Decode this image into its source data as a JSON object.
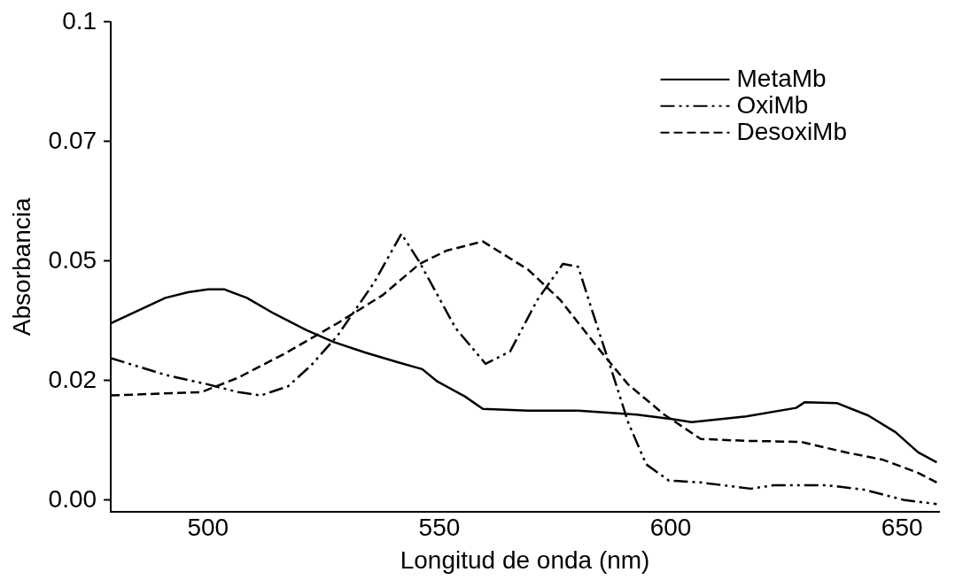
{
  "chart_data": {
    "type": "line",
    "xlabel": "Longitud de onda (nm)",
    "ylabel": "Absorbancia",
    "xlim": [
      479,
      658
    ],
    "xticks": [
      500,
      550,
      600,
      650
    ],
    "ylim": [
      -0.0024,
      0.1
    ],
    "yticks": [
      {
        "value": 0,
        "label": "0.00"
      },
      {
        "value": 0.025,
        "label": "0.02"
      },
      {
        "value": 0.05,
        "label": "0.05"
      },
      {
        "value": 0.075,
        "label": "0.07"
      },
      {
        "value": 0.1,
        "label": "0.1"
      }
    ],
    "grid": false,
    "legend": "top right",
    "marker": "none",
    "series": [
      {
        "name": "MetaMb",
        "color": "#000000",
        "line_style": "solid",
        "x": [
          479,
          490.8,
          495.7,
          500,
          503.5,
          508.4,
          514.3,
          521.2,
          527.1,
          533.9,
          540.8,
          546.3,
          549.6,
          555.5,
          559.4,
          569.2,
          580,
          592.7,
          600.6,
          604.5,
          616.3,
          627.1,
          629,
          635.9,
          642.7,
          648.6,
          653.5,
          657.5
        ],
        "values": [
          0.037,
          0.0423,
          0.0435,
          0.0441,
          0.0441,
          0.0423,
          0.039,
          0.0356,
          0.0331,
          0.0309,
          0.0289,
          0.0274,
          0.0248,
          0.0217,
          0.0191,
          0.0187,
          0.0187,
          0.0179,
          0.0169,
          0.0163,
          0.0175,
          0.0193,
          0.0205,
          0.0203,
          0.0177,
          0.0142,
          0.01,
          0.0079
        ]
      },
      {
        "name": "OxiMb",
        "color": "#000000",
        "line_style": "dashdot",
        "x": [
          479,
          490.8,
          500,
          506.5,
          511.4,
          517.3,
          522.2,
          528,
          535.9,
          541.8,
          545.7,
          553.5,
          560,
          565.3,
          571.2,
          576.7,
          580,
          582.9,
          586.9,
          590.8,
          594.7,
          599.6,
          606.5,
          617.3,
          622.2,
          633.9,
          641.8,
          650.6,
          657.5
        ],
        "values": [
          0.0297,
          0.0262,
          0.0242,
          0.0226,
          0.0219,
          0.0238,
          0.0281,
          0.0344,
          0.0455,
          0.0557,
          0.0498,
          0.036,
          0.0285,
          0.0311,
          0.0419,
          0.0494,
          0.0488,
          0.04,
          0.0281,
          0.0163,
          0.0075,
          0.0041,
          0.0037,
          0.0024,
          0.0031,
          0.0031,
          0.0022,
          0.0,
          -0.0008
        ]
      },
      {
        "name": "DesoxiMb",
        "color": "#000000",
        "line_style": "dashed",
        "x": [
          479,
          498.6,
          506.5,
          516.3,
          528,
          537.8,
          545.7,
          551.6,
          559.4,
          569.2,
          576.1,
          584.9,
          590.8,
          598.6,
          606.5,
          616.3,
          628.1,
          637.8,
          645.7,
          653.5,
          657.5
        ],
        "values": [
          0.0219,
          0.0226,
          0.0256,
          0.0305,
          0.037,
          0.0429,
          0.0494,
          0.0522,
          0.0541,
          0.0482,
          0.0419,
          0.0311,
          0.0242,
          0.0179,
          0.0128,
          0.0124,
          0.0122,
          0.01,
          0.0085,
          0.0057,
          0.0037
        ]
      }
    ]
  }
}
